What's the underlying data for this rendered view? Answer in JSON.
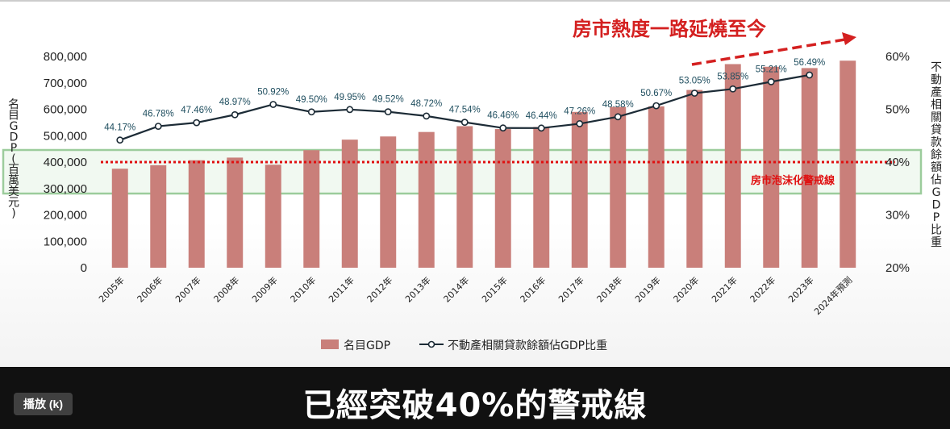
{
  "chart_data": {
    "type": "bar+line",
    "headline": "房市熱度一路延燒至今",
    "categories": [
      "2005年",
      "2006年",
      "2007年",
      "2008年",
      "2009年",
      "2010年",
      "2011年",
      "2012年",
      "2013年",
      "2014年",
      "2015年",
      "2016年",
      "2017年",
      "2018年",
      "2019年",
      "2020年",
      "2021年",
      "2022年",
      "2023年",
      "2024年預測"
    ],
    "series": [
      {
        "name": "名目GDP",
        "type": "bar",
        "axis": "left",
        "color": "#c97f7a",
        "values": [
          375000,
          388000,
          407000,
          417000,
          390000,
          445000,
          485000,
          497000,
          514000,
          536000,
          525000,
          533000,
          590000,
          609000,
          611000,
          673000,
          771000,
          761000,
          756000,
          784000
        ]
      },
      {
        "name": "不動產相關貸款餘額佔GDP比重",
        "type": "line",
        "axis": "right",
        "color": "#1c2b36",
        "values": [
          44.17,
          46.78,
          47.46,
          48.97,
          50.92,
          49.5,
          49.95,
          49.52,
          48.72,
          47.54,
          46.46,
          46.44,
          47.26,
          48.58,
          50.67,
          53.05,
          53.85,
          55.21,
          56.49,
          null
        ],
        "labels": [
          "44.17%",
          "46.78%",
          "47.46%",
          "48.97%",
          "50.92%",
          "49.50%",
          "49.95%",
          "49.52%",
          "48.72%",
          "47.54%",
          "46.46%",
          "46.44%",
          "47.26%",
          "48.58%",
          "50.67%",
          "53.05%",
          "53.85%",
          "55.21%",
          "56.49%",
          ""
        ]
      }
    ],
    "y_left": {
      "label": "名目GDP(百萬美元)",
      "ylim": [
        0,
        800000
      ],
      "ticks": [
        "0",
        "100,000",
        "200,000",
        "300,000",
        "400,000",
        "500,000",
        "600,000",
        "700,000",
        "800,000"
      ]
    },
    "y_right": {
      "label": "不動產相關貸款餘額佔GDP比重",
      "ylim": [
        20,
        60
      ],
      "ticks": [
        "20%",
        "30%",
        "40%",
        "50%",
        "60%"
      ]
    },
    "threshold": {
      "value": 40,
      "label": "房市泡沫化警戒線",
      "color": "#e01010"
    },
    "legend_position": "bottom",
    "grid": false
  },
  "video": {
    "subtitle": "已經突破40%的警戒線",
    "play_button": "播放 (k)"
  }
}
